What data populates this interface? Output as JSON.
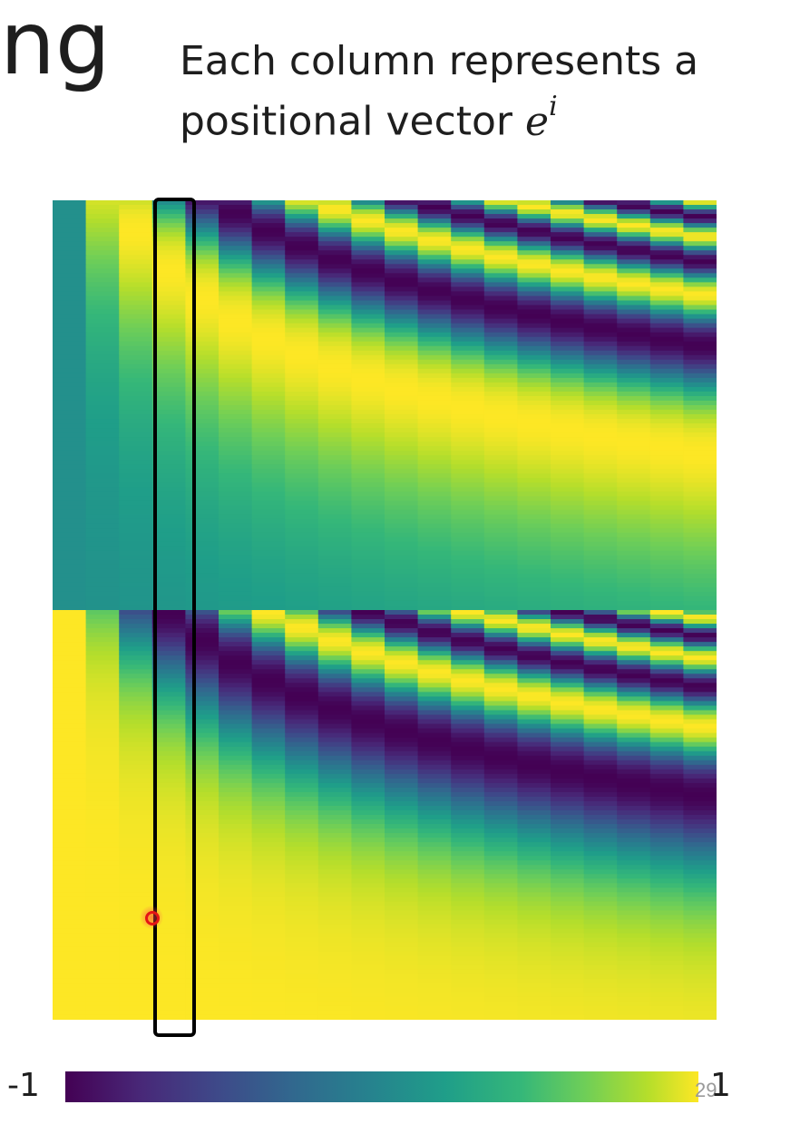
{
  "slide": {
    "title_fragment": "ng",
    "caption_line1": "Each column represents a",
    "caption_line2_text": "positional vector ",
    "caption_math_base": "e",
    "caption_math_sup": "i",
    "slide_number": "29"
  },
  "colorbar": {
    "min_label": "-1",
    "max_label": "1",
    "colormap": "viridis",
    "colors": [
      "#440154",
      "#482878",
      "#3e4989",
      "#31688e",
      "#26828e",
      "#1f9e89",
      "#35b779",
      "#6ece58",
      "#b5de2b",
      "#fde725"
    ]
  },
  "heatmap": {
    "description_kind": "sinusoidal positional encoding",
    "columns": 20,
    "upper_half": "sin",
    "lower_half": "cos",
    "value_range": [
      -1,
      1
    ],
    "highlighted_column": 3
  }
}
